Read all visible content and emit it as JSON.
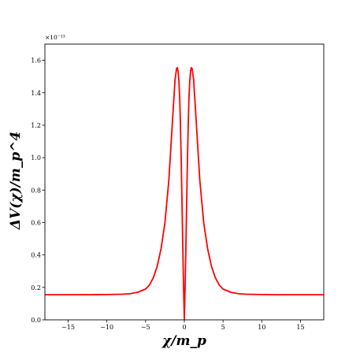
{
  "chart_data": {
    "type": "line",
    "xlabel": "χ/m_p",
    "ylabel": "ΔV(χ)/m_p^4",
    "xlim": [
      -18,
      18
    ],
    "ylim": [
      0.0,
      1.7
    ],
    "y_scale_exponent": "×10⁻¹³",
    "x_ticks": [
      -15,
      -10,
      -5,
      0,
      5,
      10,
      15
    ],
    "x_tick_labels": [
      "−15",
      "−10",
      "−5",
      "0",
      "5",
      "10",
      "15"
    ],
    "y_ticks": [
      0.0,
      0.2,
      0.4,
      0.6,
      0.8,
      1.0,
      1.2,
      1.4,
      1.6
    ],
    "y_tick_labels": [
      "0.0",
      "0.2",
      "0.4",
      "0.6",
      "0.8",
      "1.0",
      "1.2",
      "1.4",
      "1.6"
    ],
    "grid": false,
    "series": [
      {
        "color": "#ff0000",
        "x": [
          -18,
          -15,
          -12,
          -10,
          -8,
          -7,
          -6,
          -5,
          -4.5,
          -4,
          -3.5,
          -3,
          -2.5,
          -2,
          -1.5,
          -1.2,
          -1.0,
          -0.9,
          -0.8,
          -0.7,
          -0.6,
          -0.5,
          -0.4,
          -0.3,
          -0.2,
          -0.1,
          0,
          0.1,
          0.2,
          0.3,
          0.4,
          0.5,
          0.6,
          0.7,
          0.8,
          0.9,
          1.0,
          1.2,
          1.5,
          2,
          2.5,
          3,
          3.5,
          4,
          4.5,
          5,
          6,
          7,
          8,
          10,
          12,
          15,
          18
        ],
        "y": [
          0.155,
          0.155,
          0.155,
          0.156,
          0.158,
          0.161,
          0.17,
          0.19,
          0.215,
          0.26,
          0.33,
          0.44,
          0.6,
          0.86,
          1.25,
          1.48,
          1.55,
          1.555,
          1.53,
          1.47,
          1.37,
          1.2,
          0.98,
          0.72,
          0.45,
          0.2,
          0.0,
          0.2,
          0.45,
          0.72,
          0.98,
          1.2,
          1.37,
          1.47,
          1.53,
          1.555,
          1.55,
          1.48,
          1.25,
          0.86,
          0.6,
          0.44,
          0.33,
          0.26,
          0.215,
          0.19,
          0.17,
          0.161,
          0.158,
          0.156,
          0.155,
          0.155,
          0.155
        ]
      }
    ]
  }
}
